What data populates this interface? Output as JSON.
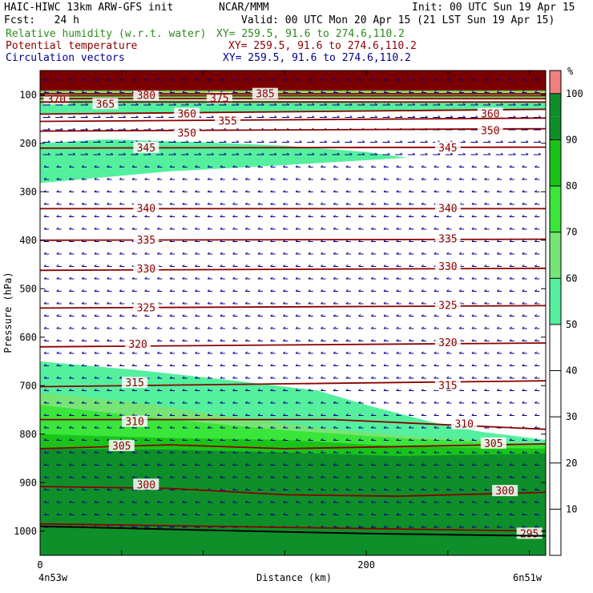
{
  "header": {
    "model": "HAIC-HIWC 13km ARW-GFS init",
    "org": "NCAR/MMM",
    "init": "Init: 00 UTC Sun 19 Apr 15",
    "fcst": "Fcst:   24 h",
    "valid": "Valid: 00 UTC Mon 20 Apr 15 (21 LST Sun 19 Apr 15)",
    "field1": "Relative humidity (w.r.t. water)",
    "field1_xy": "XY= 259.5, 91.6 to 274.6,110.2",
    "field2": "Potential temperature",
    "field2_xy": "XY= 259.5, 91.6 to 274.6,110.2",
    "field3": "Circulation vectors",
    "field3_xy": "XY= 259.5, 91.6 to 274.6,110.2"
  },
  "colors": {
    "rh": "#2e8b1e",
    "theta": "#8b0000",
    "vectors": "#00008b",
    "terrain": "#000000"
  },
  "chart_data": {
    "type": "cross-section",
    "x_axis": {
      "label": "Distance (km)",
      "range": [
        0,
        310
      ],
      "ticks": [
        0,
        200
      ],
      "minor_step": 50,
      "left_end_label": "4n53w",
      "right_end_label": "6n51w"
    },
    "y_axis": {
      "label": "Pressure (hPa)",
      "range": [
        1050,
        50
      ],
      "ticks": [
        100,
        200,
        300,
        400,
        500,
        600,
        700,
        800,
        900,
        1000
      ]
    },
    "colorbar": {
      "unit": "%",
      "levels": [
        0,
        10,
        20,
        30,
        40,
        50,
        60,
        70,
        80,
        90,
        95,
        100,
        105
      ],
      "ticks": [
        10,
        20,
        30,
        40,
        50,
        60,
        70,
        80,
        90,
        100
      ],
      "colors": [
        {
          "min": 50,
          "max": 60,
          "color": "#54f09e"
        },
        {
          "min": 60,
          "max": 70,
          "color": "#76e576"
        },
        {
          "min": 70,
          "max": 80,
          "color": "#39e639"
        },
        {
          "min": 80,
          "max": 90,
          "color": "#18c418"
        },
        {
          "min": 90,
          "max": 95,
          "color": "#0f8f2a"
        },
        {
          "min": 95,
          "max": 100,
          "color": "#0f8f2a"
        },
        {
          "min": 100,
          "max": 105,
          "color": "#7a0000"
        }
      ],
      "top_cap_color": "#f08080"
    },
    "rh_regions": [
      {
        "level": 100,
        "points": [
          [
            0,
            50
          ],
          [
            310,
            50
          ],
          [
            310,
            90
          ],
          [
            0,
            90
          ]
        ]
      },
      {
        "level": 60,
        "points": [
          [
            0,
            90
          ],
          [
            310,
            90
          ],
          [
            310,
            110
          ],
          [
            0,
            110
          ]
        ]
      },
      {
        "level": 50,
        "points": [
          [
            0,
            110
          ],
          [
            310,
            115
          ],
          [
            310,
            130
          ],
          [
            0,
            140
          ]
        ]
      },
      {
        "level": 50,
        "points": [
          [
            0,
            200
          ],
          [
            40,
            192
          ],
          [
            100,
            198
          ],
          [
            150,
            205
          ],
          [
            200,
            218
          ],
          [
            225,
            230
          ],
          [
            150,
            245
          ],
          [
            80,
            258
          ],
          [
            0,
            282
          ]
        ]
      },
      {
        "level": 50,
        "points": [
          [
            0,
            650
          ],
          [
            60,
            668
          ],
          [
            120,
            690
          ],
          [
            170,
            710
          ],
          [
            200,
            740
          ],
          [
            240,
            775
          ],
          [
            270,
            795
          ],
          [
            310,
            812
          ],
          [
            310,
            1050
          ],
          [
            0,
            1050
          ]
        ]
      },
      {
        "level": 60,
        "points": [
          [
            0,
            715
          ],
          [
            60,
            735
          ],
          [
            120,
            765
          ],
          [
            180,
            790
          ],
          [
            230,
            805
          ],
          [
            310,
            820
          ],
          [
            310,
            1050
          ],
          [
            0,
            1050
          ]
        ]
      },
      {
        "level": 70,
        "points": [
          [
            0,
            740
          ],
          [
            80,
            770
          ],
          [
            150,
            792
          ],
          [
            220,
            808
          ],
          [
            310,
            822
          ],
          [
            310,
            1050
          ],
          [
            0,
            1050
          ]
        ]
      },
      {
        "level": 80,
        "points": [
          [
            0,
            800
          ],
          [
            80,
            808
          ],
          [
            150,
            812
          ],
          [
            220,
            825
          ],
          [
            310,
            830
          ],
          [
            310,
            1050
          ],
          [
            0,
            1050
          ]
        ]
      },
      {
        "level": 90,
        "points": [
          [
            0,
            830
          ],
          [
            80,
            832
          ],
          [
            150,
            838
          ],
          [
            220,
            845
          ],
          [
            310,
            840
          ],
          [
            310,
            1050
          ],
          [
            0,
            1050
          ]
        ]
      },
      {
        "level": 95,
        "points": [
          [
            0,
            930
          ],
          [
            60,
            928
          ],
          [
            120,
            945
          ],
          [
            200,
            958
          ],
          [
            310,
            950
          ],
          [
            310,
            1000
          ],
          [
            0,
            1000
          ]
        ]
      }
    ],
    "theta_contours": [
      {
        "value": 370,
        "points": [
          [
            0,
            108
          ],
          [
            310,
            108
          ]
        ],
        "labels": [
          [
            10,
            110
          ]
        ]
      },
      {
        "value": 375,
        "points": [
          [
            0,
            102
          ],
          [
            310,
            102
          ]
        ],
        "labels": [
          [
            110,
            108
          ]
        ]
      },
      {
        "value": 380,
        "points": [
          [
            0,
            98
          ],
          [
            310,
            98
          ]
        ],
        "labels": [
          [
            65,
            102
          ]
        ]
      },
      {
        "value": 385,
        "points": [
          [
            0,
            90
          ],
          [
            310,
            90
          ]
        ],
        "labels": [
          [
            138,
            99
          ]
        ]
      },
      {
        "value": 365,
        "points": [
          [
            0,
            115
          ],
          [
            310,
            115
          ]
        ],
        "labels": [
          [
            40,
            120
          ]
        ]
      },
      {
        "value": 360,
        "points": [
          [
            0,
            140
          ],
          [
            310,
            130
          ]
        ],
        "labels": [
          [
            90,
            140
          ],
          [
            276,
            140
          ]
        ]
      },
      {
        "value": 355,
        "points": [
          [
            0,
            155
          ],
          [
            310,
            148
          ]
        ],
        "labels": [
          [
            115,
            155
          ]
        ]
      },
      {
        "value": 350,
        "points": [
          [
            0,
            175
          ],
          [
            310,
            170
          ]
        ],
        "labels": [
          [
            90,
            180
          ],
          [
            276,
            175
          ]
        ]
      },
      {
        "value": 345,
        "points": [
          [
            0,
            210
          ],
          [
            310,
            208
          ]
        ],
        "labels": [
          [
            65,
            210
          ],
          [
            250,
            210
          ]
        ]
      },
      {
        "value": 340,
        "points": [
          [
            0,
            335
          ],
          [
            310,
            335
          ]
        ],
        "labels": [
          [
            65,
            335
          ],
          [
            250,
            335
          ]
        ]
      },
      {
        "value": 335,
        "points": [
          [
            0,
            400
          ],
          [
            310,
            398
          ]
        ],
        "labels": [
          [
            65,
            400
          ],
          [
            250,
            398
          ]
        ]
      },
      {
        "value": 330,
        "points": [
          [
            0,
            462
          ],
          [
            310,
            458
          ]
        ],
        "labels": [
          [
            65,
            460
          ],
          [
            250,
            455
          ]
        ]
      },
      {
        "value": 325,
        "points": [
          [
            0,
            540
          ],
          [
            310,
            535
          ]
        ],
        "labels": [
          [
            65,
            540
          ],
          [
            250,
            535
          ]
        ]
      },
      {
        "value": 320,
        "points": [
          [
            0,
            620
          ],
          [
            310,
            612
          ]
        ],
        "labels": [
          [
            60,
            615
          ],
          [
            250,
            612
          ]
        ]
      },
      {
        "value": 315,
        "points": [
          [
            0,
            702
          ],
          [
            310,
            690
          ]
        ],
        "labels": [
          [
            58,
            695
          ],
          [
            250,
            700
          ]
        ]
      },
      {
        "value": 310,
        "points": [
          [
            0,
            770
          ],
          [
            180,
            770
          ],
          [
            310,
            790
          ]
        ],
        "labels": [
          [
            58,
            775
          ],
          [
            260,
            780
          ]
        ]
      },
      {
        "value": 305,
        "points": [
          [
            0,
            830
          ],
          [
            80,
            822
          ],
          [
            150,
            830
          ],
          [
            310,
            820
          ]
        ],
        "labels": [
          [
            50,
            825
          ],
          [
            278,
            820
          ]
        ]
      },
      {
        "value": 300,
        "points": [
          [
            0,
            908
          ],
          [
            80,
            912
          ],
          [
            150,
            925
          ],
          [
            220,
            928
          ],
          [
            310,
            920
          ]
        ],
        "labels": [
          [
            65,
            905
          ],
          [
            285,
            918
          ]
        ]
      },
      {
        "value": 295,
        "points": [
          [
            0,
            985
          ],
          [
            310,
            1000
          ]
        ],
        "labels": [
          [
            300,
            1006
          ]
        ]
      }
    ],
    "terrain_pressure": [
      [
        0,
        990
      ],
      [
        100,
        998
      ],
      [
        200,
        1005
      ],
      [
        310,
        1010
      ]
    ],
    "vector_flow": "westward (leftward arrows) throughout; eastward (rightward arrows) near 120-200 hPa"
  }
}
